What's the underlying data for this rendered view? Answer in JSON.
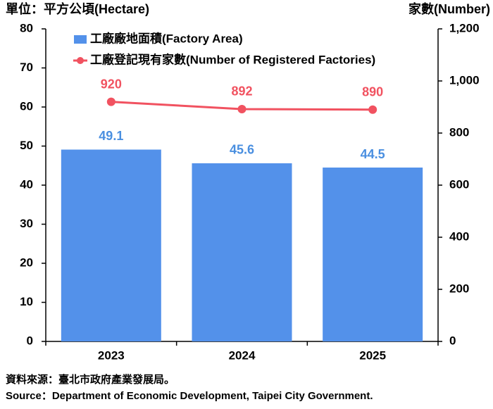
{
  "chart_data": {
    "type": "combo",
    "y_label": "單位：平方公頃(Hectare)",
    "y2_label": "家數(Number)",
    "categories": [
      "2023",
      "2024",
      "2025"
    ],
    "series": [
      {
        "name": "工廠廠地面積(Factory Area)",
        "type": "bar",
        "color": "#5391ea",
        "label_color": "#4a8fe0",
        "values": [
          49.1,
          45.6,
          44.5
        ]
      },
      {
        "name": "工廠登記現有家數(Number of Registered Factories)",
        "type": "line",
        "color": "#f15260",
        "label_color": "#f15260",
        "axis": "y2",
        "values": [
          920,
          892,
          890
        ]
      }
    ],
    "ylim": [
      0,
      80
    ],
    "yticks": [
      0,
      10,
      20,
      30,
      40,
      50,
      60,
      70,
      80
    ],
    "y2lim": [
      0,
      1200
    ],
    "y2ticks": [
      0,
      200,
      400,
      600,
      800,
      {
        "value": 1000,
        "label": "1,000"
      },
      {
        "value": 1200,
        "label": "1,200"
      }
    ],
    "source": [
      "資料來源：臺北市政府產業發展局。",
      "Source：Department of Economic Development, Taipei City Government."
    ]
  }
}
